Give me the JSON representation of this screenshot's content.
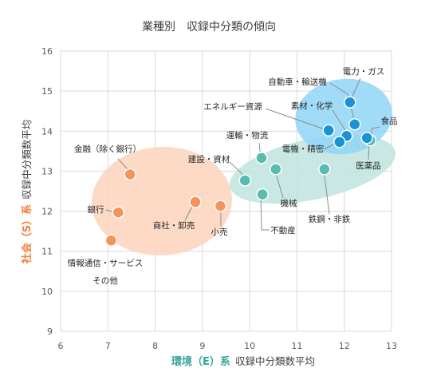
{
  "chart_data": {
    "type": "scatter",
    "title": "業種別　収録中分類の傾向",
    "xlabel": {
      "accent": "環境（E）系",
      "rest": "収録中分類数平均"
    },
    "ylabel": {
      "accent": "社会（S）系",
      "rest": "収録中分類数平均"
    },
    "xlim": [
      6,
      13
    ],
    "ylim": [
      9,
      16
    ],
    "xticks": [
      "6",
      "7",
      "8",
      "9",
      "10",
      "11",
      "12",
      "13"
    ],
    "yticks": [
      "9",
      "10",
      "11",
      "12",
      "13",
      "14",
      "15",
      "16"
    ],
    "grid": true,
    "colors": {
      "orange_point": "#f4935a",
      "teal_point": "#58bcaf",
      "blue_point": "#1a93d6",
      "orange_cluster": "#fbd3bc",
      "teal_cluster": "#bfe4df",
      "blue_cluster": "#8fd5f7"
    },
    "series": [
      {
        "group": "orange",
        "points": [
          {
            "label": "金融（除く銀行）",
            "x": 7.47,
            "y": 12.92
          },
          {
            "label": "銀行",
            "x": 7.22,
            "y": 11.97
          },
          {
            "label": "情報通信・サービス",
            "label2": "その他",
            "x": 7.07,
            "y": 11.27
          },
          {
            "label": "商社・卸売",
            "x": 8.85,
            "y": 12.23
          },
          {
            "label": "小売",
            "x": 9.38,
            "y": 12.13
          }
        ]
      },
      {
        "group": "teal",
        "points": [
          {
            "label": "建設・資材",
            "x": 9.9,
            "y": 12.77
          },
          {
            "label": "運輸・物流",
            "x": 10.25,
            "y": 13.33
          },
          {
            "label": "機械",
            "x": 10.55,
            "y": 13.05
          },
          {
            "label": "不動産",
            "x": 10.27,
            "y": 12.42
          },
          {
            "label": "鉄鋼・非鉄",
            "x": 11.58,
            "y": 13.05
          },
          {
            "label": "医薬品",
            "x": 12.55,
            "y": 13.77
          }
        ]
      },
      {
        "group": "blue",
        "points": [
          {
            "label": "電力・ガス",
            "x": 12.12,
            "y": 14.72
          },
          {
            "label": "自動車・輸送機",
            "x": 12.22,
            "y": 14.17
          },
          {
            "label": "素材・化学",
            "x": 12.05,
            "y": 13.88
          },
          {
            "label": "エネルギー資源",
            "x": 11.67,
            "y": 14.02
          },
          {
            "label": "電機・精密",
            "x": 11.9,
            "y": 13.73
          },
          {
            "label": "食品",
            "x": 12.48,
            "y": 13.83
          }
        ]
      }
    ]
  }
}
